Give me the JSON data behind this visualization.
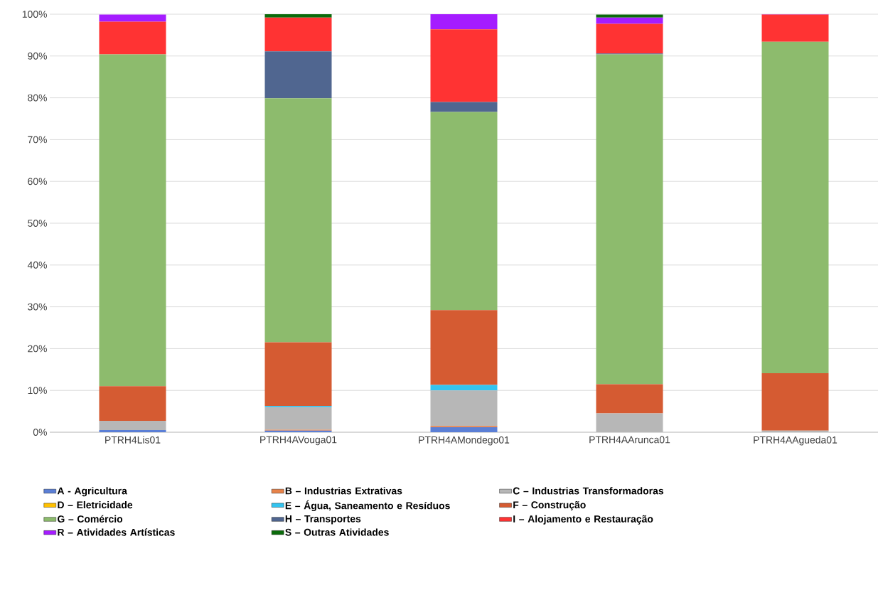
{
  "chart_data": {
    "type": "bar",
    "stacked": true,
    "categories": [
      "PTRH4Lis01",
      "PTRH4AVouga01",
      "PTRH4AMondego01",
      "PTRH4AArunca01",
      "PTRH4AAgueda01"
    ],
    "series": [
      {
        "name": "A - Agricultura",
        "color": "#5b7fd6",
        "values": [
          0.5,
          0.4,
          1.2,
          0,
          0
        ]
      },
      {
        "name": "B – Industrias Extrativas",
        "color": "#e8834a",
        "values": [
          0,
          0.2,
          0.3,
          0,
          0
        ]
      },
      {
        "name": "C – Industrias Transformadoras",
        "color": "#b7b7b7",
        "values": [
          2.2,
          5.4,
          8.5,
          4.5,
          0.4
        ]
      },
      {
        "name": "D – Eletricidade",
        "color": "#ffc000",
        "values": [
          0,
          0,
          0,
          0,
          0
        ]
      },
      {
        "name": "E – Água, Saneamento e Resíduos",
        "color": "#33c3ef",
        "values": [
          null,
          0.3,
          1.3,
          null,
          0
        ]
      },
      {
        "name": "F – Construção",
        "color": "#d55b32",
        "values": [
          8.3,
          15.2,
          17.9,
          7.0,
          13.7
        ]
      },
      {
        "name": "G – Comércio",
        "color": "#8dbb6d",
        "values": [
          79.4,
          58.4,
          47.4,
          78.9,
          79.3
        ]
      },
      {
        "name": "H – Transportes",
        "color": "#506690",
        "values": [
          0,
          11.2,
          2.4,
          0.2,
          0
        ]
      },
      {
        "name": "I – Alojamento e Restauração",
        "color": "#ff3333",
        "values": [
          7.8,
          8.1,
          17.4,
          7.1,
          6.5
        ]
      },
      {
        "name": "R – Atividades Artísticas",
        "color": "#a51cff",
        "values": [
          1.7,
          0,
          3.6,
          1.5,
          0.1
        ]
      },
      {
        "name": "S – Outras Atividades",
        "color": "#0b6b0b",
        "values": [
          0,
          0.8,
          0,
          0.7,
          0
        ]
      }
    ],
    "ylim": [
      0,
      100
    ],
    "yticks": [
      {
        "value": 0,
        "label": "0%"
      },
      {
        "value": 10,
        "label": "10%"
      },
      {
        "value": 20,
        "label": "20%"
      },
      {
        "value": 30,
        "label": "30%"
      },
      {
        "value": 40,
        "label": "40%"
      },
      {
        "value": 50,
        "label": "50%"
      },
      {
        "value": 60,
        "label": "60%"
      },
      {
        "value": 70,
        "label": "70%"
      },
      {
        "value": 80,
        "label": "80%"
      },
      {
        "value": 90,
        "label": "90%"
      },
      {
        "value": 100,
        "label": "100%"
      }
    ],
    "grid": "y",
    "legend": "bottom"
  }
}
